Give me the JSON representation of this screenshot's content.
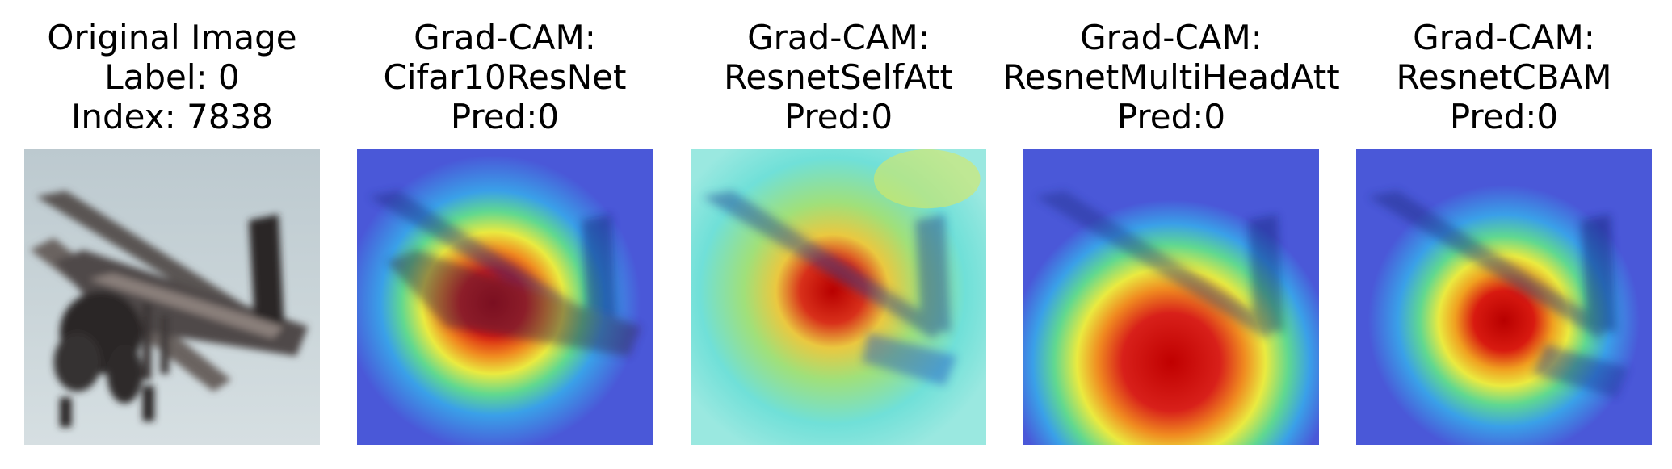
{
  "panels": [
    {
      "title_lines": [
        "Original Image",
        "Label: 0",
        "Index: 7838"
      ],
      "image": "Original CIFAR-10 image of an airplane"
    },
    {
      "title_lines": [
        "Grad-CAM:",
        "Cifar10ResNet",
        "Pred:0"
      ],
      "image": "Grad-CAM heatmap overlay"
    },
    {
      "title_lines": [
        "Grad-CAM:",
        "ResnetSelfAtt",
        "Pred:0"
      ],
      "image": "Grad-CAM heatmap overlay"
    },
    {
      "title_lines": [
        "Grad-CAM:",
        "ResnetMultiHeadAtt",
        "Pred:0"
      ],
      "image": "Grad-CAM heatmap overlay"
    },
    {
      "title_lines": [
        "Grad-CAM:",
        "ResnetCBAM",
        "Pred:0"
      ],
      "image": "Grad-CAM heatmap overlay"
    }
  ]
}
